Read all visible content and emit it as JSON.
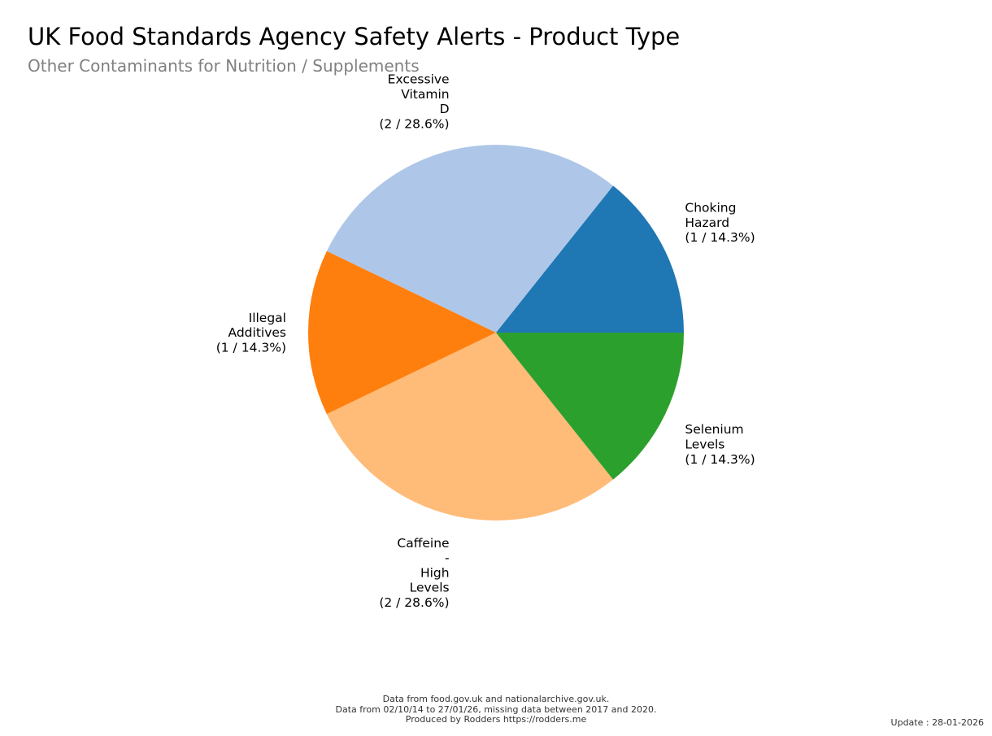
{
  "chart_data": {
    "type": "pie",
    "title": "UK Food Standards Agency Safety Alerts - Product Type",
    "subtitle": "Other Contaminants for Nutrition / Supplements",
    "slices": [
      {
        "label_lines": [
          "Choking",
          "Hazard",
          "(1 / 14.3%)"
        ],
        "category": "Choking Hazard",
        "value": 1,
        "percent": 14.3,
        "color": "#1f77b4"
      },
      {
        "label_lines": [
          "Excessive",
          "Vitamin",
          "D",
          "(2 / 28.6%)"
        ],
        "category": "Excessive Vitamin D",
        "value": 2,
        "percent": 28.6,
        "color": "#aec7e8"
      },
      {
        "label_lines": [
          "Illegal",
          "Additives",
          "(1 / 14.3%)"
        ],
        "category": "Illegal Additives",
        "value": 1,
        "percent": 14.3,
        "color": "#ff7f0e"
      },
      {
        "label_lines": [
          "Caffeine",
          "-",
          "High",
          "Levels",
          "(2 / 28.6%)"
        ],
        "category": "Caffeine - High Levels",
        "value": 2,
        "percent": 28.6,
        "color": "#ffbb78"
      },
      {
        "label_lines": [
          "Selenium",
          "Levels",
          "(1 / 14.3%)"
        ],
        "category": "Selenium Levels",
        "value": 1,
        "percent": 14.3,
        "color": "#2ca02c"
      }
    ]
  },
  "footer": {
    "line1": "Data from food.gov.uk and nationalarchive.gov.uk.",
    "line2": "Data from 02/10/14 to 27/01/26, missing data between 2017 and 2020.",
    "line3": "Produced by Rodders https://rodders.me"
  },
  "update_text": "Update : 28-01-2026"
}
